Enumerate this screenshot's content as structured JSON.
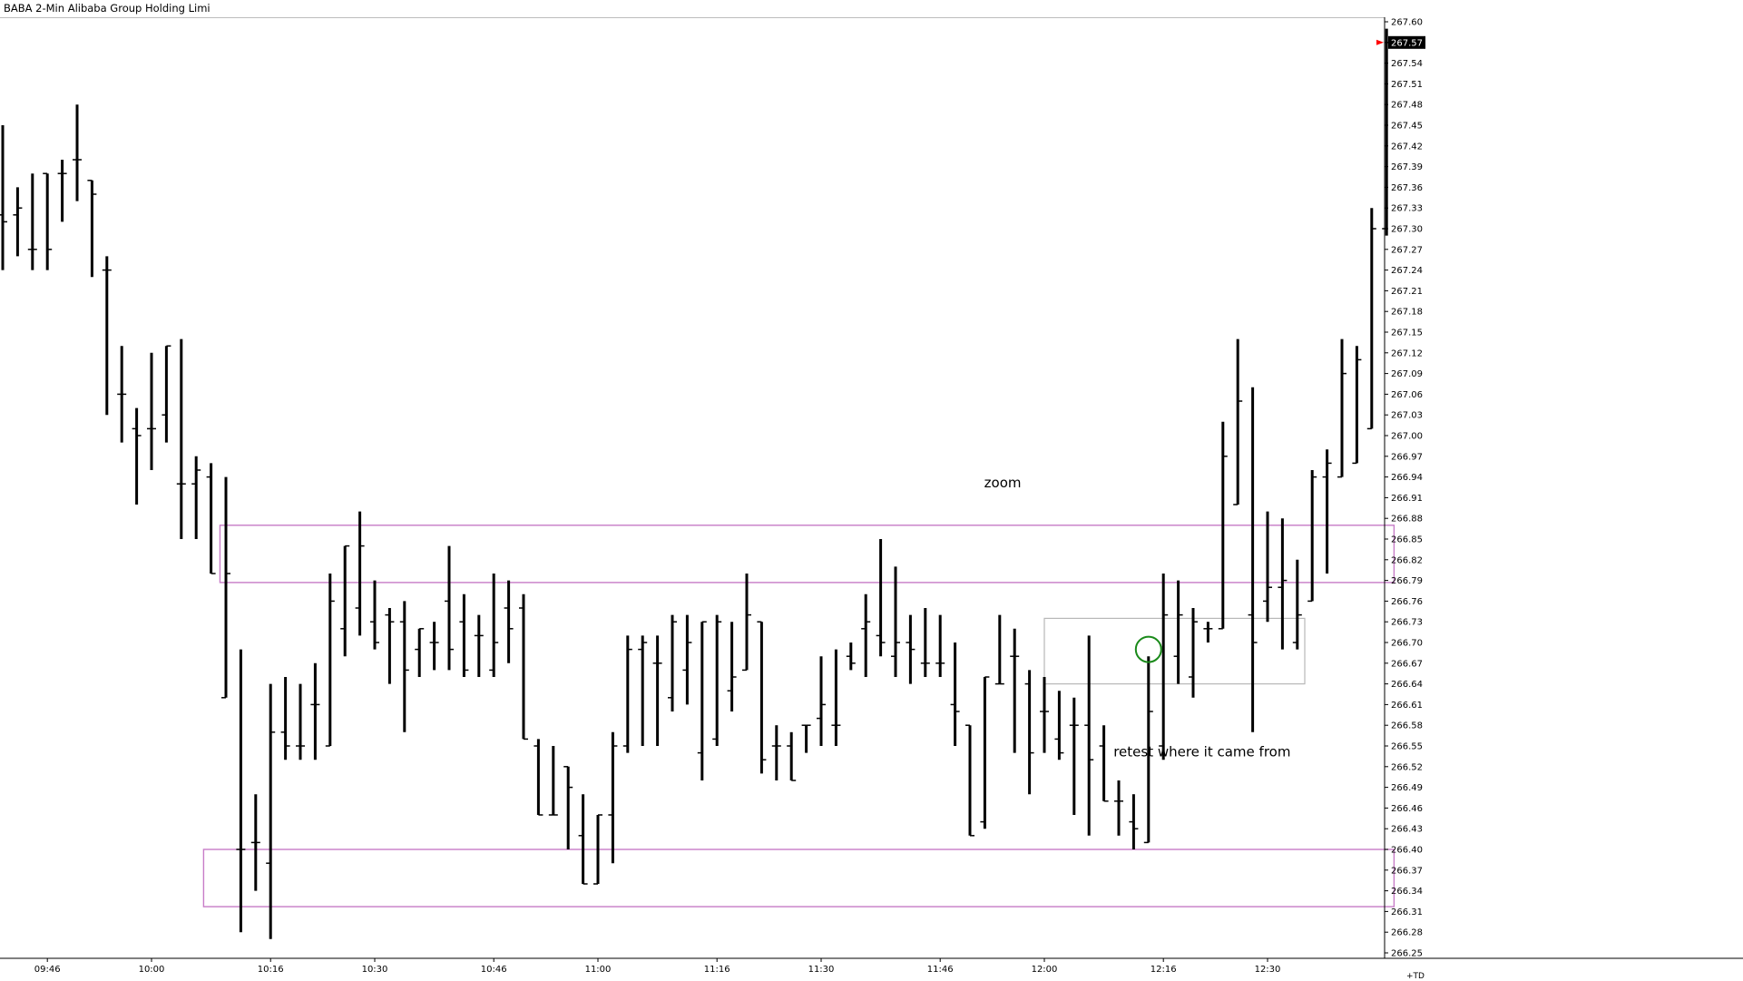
{
  "window": {
    "title": "BABA 2-Min Alibaba Group Holding Limi",
    "corner_label": "+TD"
  },
  "colors": {
    "bar": "#000000",
    "zone": "#c77cc7",
    "retest_box": "#b8b8b8",
    "circle": "#1a8a1a",
    "last_price_marker": "#ff0000",
    "last_price_bg": "#000000"
  },
  "chart_data": {
    "type": "ohlc",
    "symbol": "BABA",
    "interval": "2-Min",
    "title": "BABA 2-Min Alibaba Group Holding Limi",
    "ylim": [
      266.25,
      267.6
    ],
    "y_ticks": [
      267.6,
      267.57,
      267.54,
      267.51,
      267.48,
      267.45,
      267.42,
      267.39,
      267.36,
      267.33,
      267.3,
      267.27,
      267.24,
      267.21,
      267.18,
      267.15,
      267.12,
      267.09,
      267.06,
      267.03,
      267.0,
      266.97,
      266.94,
      266.91,
      266.88,
      266.85,
      266.82,
      266.79,
      266.76,
      266.73,
      266.7,
      266.67,
      266.64,
      266.61,
      266.58,
      266.55,
      266.52,
      266.49,
      266.46,
      266.43,
      266.4,
      266.37,
      266.34,
      266.31,
      266.28,
      266.25
    ],
    "x_ticks": [
      {
        "label": "09:46",
        "bar": 3
      },
      {
        "label": "10:00",
        "bar": 10
      },
      {
        "label": "10:16",
        "bar": 18
      },
      {
        "label": "10:30",
        "bar": 25
      },
      {
        "label": "10:46",
        "bar": 33
      },
      {
        "label": "11:00",
        "bar": 40
      },
      {
        "label": "11:16",
        "bar": 48
      },
      {
        "label": "11:30",
        "bar": 55
      },
      {
        "label": "11:46",
        "bar": 63
      },
      {
        "label": "12:00",
        "bar": 70
      },
      {
        "label": "12:16",
        "bar": 78
      },
      {
        "label": "12:30",
        "bar": 85
      }
    ],
    "last_price": 267.57,
    "bars": [
      {
        "o": 267.32,
        "h": 267.45,
        "l": 267.24,
        "c": 267.31
      },
      {
        "o": 267.32,
        "h": 267.36,
        "l": 267.26,
        "c": 267.33
      },
      {
        "o": 267.27,
        "h": 267.38,
        "l": 267.24,
        "c": 267.27
      },
      {
        "o": 267.38,
        "h": 267.38,
        "l": 267.24,
        "c": 267.27
      },
      {
        "o": 267.38,
        "h": 267.4,
        "l": 267.31,
        "c": 267.38
      },
      {
        "o": 267.4,
        "h": 267.48,
        "l": 267.34,
        "c": 267.4
      },
      {
        "o": 267.37,
        "h": 267.37,
        "l": 267.23,
        "c": 267.35
      },
      {
        "o": 267.24,
        "h": 267.26,
        "l": 267.03,
        "c": 267.24
      },
      {
        "o": 267.06,
        "h": 267.13,
        "l": 266.99,
        "c": 267.06
      },
      {
        "o": 267.01,
        "h": 267.04,
        "l": 266.9,
        "c": 267.0
      },
      {
        "o": 267.01,
        "h": 267.12,
        "l": 266.95,
        "c": 267.01
      },
      {
        "o": 267.03,
        "h": 267.13,
        "l": 266.99,
        "c": 267.13
      },
      {
        "o": 266.93,
        "h": 267.14,
        "l": 266.85,
        "c": 266.93
      },
      {
        "o": 266.93,
        "h": 266.97,
        "l": 266.85,
        "c": 266.95
      },
      {
        "o": 266.94,
        "h": 266.96,
        "l": 266.8,
        "c": 266.8
      },
      {
        "o": 266.62,
        "h": 266.94,
        "l": 266.62,
        "c": 266.8
      },
      {
        "o": 266.4,
        "h": 266.69,
        "l": 266.28,
        "c": 266.4
      },
      {
        "o": 266.41,
        "h": 266.48,
        "l": 266.34,
        "c": 266.41
      },
      {
        "o": 266.38,
        "h": 266.64,
        "l": 266.27,
        "c": 266.57
      },
      {
        "o": 266.57,
        "h": 266.65,
        "l": 266.53,
        "c": 266.55
      },
      {
        "o": 266.55,
        "h": 266.64,
        "l": 266.53,
        "c": 266.55
      },
      {
        "o": 266.61,
        "h": 266.67,
        "l": 266.53,
        "c": 266.61
      },
      {
        "o": 266.55,
        "h": 266.8,
        "l": 266.55,
        "c": 266.76
      },
      {
        "o": 266.72,
        "h": 266.84,
        "l": 266.68,
        "c": 266.84
      },
      {
        "o": 266.75,
        "h": 266.89,
        "l": 266.71,
        "c": 266.84
      },
      {
        "o": 266.73,
        "h": 266.79,
        "l": 266.69,
        "c": 266.7
      },
      {
        "o": 266.74,
        "h": 266.75,
        "l": 266.64,
        "c": 266.73
      },
      {
        "o": 266.73,
        "h": 266.76,
        "l": 266.57,
        "c": 266.66
      },
      {
        "o": 266.69,
        "h": 266.72,
        "l": 266.65,
        "c": 266.72
      },
      {
        "o": 266.7,
        "h": 266.73,
        "l": 266.66,
        "c": 266.7
      },
      {
        "o": 266.76,
        "h": 266.84,
        "l": 266.66,
        "c": 266.69
      },
      {
        "o": 266.73,
        "h": 266.77,
        "l": 266.65,
        "c": 266.66
      },
      {
        "o": 266.71,
        "h": 266.74,
        "l": 266.65,
        "c": 266.71
      },
      {
        "o": 266.66,
        "h": 266.8,
        "l": 266.65,
        "c": 266.7
      },
      {
        "o": 266.75,
        "h": 266.79,
        "l": 266.67,
        "c": 266.72
      },
      {
        "o": 266.75,
        "h": 266.77,
        "l": 266.56,
        "c": 266.56
      },
      {
        "o": 266.55,
        "h": 266.56,
        "l": 266.45,
        "c": 266.45
      },
      {
        "o": 266.45,
        "h": 266.55,
        "l": 266.45,
        "c": 266.45
      },
      {
        "o": 266.52,
        "h": 266.52,
        "l": 266.4,
        "c": 266.49
      },
      {
        "o": 266.42,
        "h": 266.48,
        "l": 266.35,
        "c": 266.35
      },
      {
        "o": 266.35,
        "h": 266.45,
        "l": 266.35,
        "c": 266.45
      },
      {
        "o": 266.45,
        "h": 266.57,
        "l": 266.38,
        "c": 266.55
      },
      {
        "o": 266.55,
        "h": 266.71,
        "l": 266.54,
        "c": 266.69
      },
      {
        "o": 266.69,
        "h": 266.71,
        "l": 266.55,
        "c": 266.7
      },
      {
        "o": 266.67,
        "h": 266.71,
        "l": 266.55,
        "c": 266.67
      },
      {
        "o": 266.62,
        "h": 266.74,
        "l": 266.6,
        "c": 266.73
      },
      {
        "o": 266.66,
        "h": 266.74,
        "l": 266.61,
        "c": 266.7
      },
      {
        "o": 266.54,
        "h": 266.73,
        "l": 266.5,
        "c": 266.73
      },
      {
        "o": 266.56,
        "h": 266.74,
        "l": 266.55,
        "c": 266.73
      },
      {
        "o": 266.63,
        "h": 266.73,
        "l": 266.6,
        "c": 266.65
      },
      {
        "o": 266.66,
        "h": 266.8,
        "l": 266.66,
        "c": 266.74
      },
      {
        "o": 266.73,
        "h": 266.73,
        "l": 266.51,
        "c": 266.53
      },
      {
        "o": 266.55,
        "h": 266.58,
        "l": 266.5,
        "c": 266.55
      },
      {
        "o": 266.55,
        "h": 266.57,
        "l": 266.5,
        "c": 266.5
      },
      {
        "o": 266.58,
        "h": 266.58,
        "l": 266.54,
        "c": 266.58
      },
      {
        "o": 266.59,
        "h": 266.68,
        "l": 266.55,
        "c": 266.61
      },
      {
        "o": 266.58,
        "h": 266.69,
        "l": 266.55,
        "c": 266.58
      },
      {
        "o": 266.68,
        "h": 266.7,
        "l": 266.66,
        "c": 266.67
      },
      {
        "o": 266.72,
        "h": 266.77,
        "l": 266.65,
        "c": 266.73
      },
      {
        "o": 266.71,
        "h": 266.85,
        "l": 266.68,
        "c": 266.7
      },
      {
        "o": 266.68,
        "h": 266.81,
        "l": 266.65,
        "c": 266.7
      },
      {
        "o": 266.7,
        "h": 266.74,
        "l": 266.64,
        "c": 266.69
      },
      {
        "o": 266.67,
        "h": 266.75,
        "l": 266.65,
        "c": 266.67
      },
      {
        "o": 266.67,
        "h": 266.74,
        "l": 266.65,
        "c": 266.67
      },
      {
        "o": 266.61,
        "h": 266.7,
        "l": 266.55,
        "c": 266.6
      },
      {
        "o": 266.58,
        "h": 266.58,
        "l": 266.42,
        "c": 266.42
      },
      {
        "o": 266.44,
        "h": 266.65,
        "l": 266.43,
        "c": 266.65
      },
      {
        "o": 266.64,
        "h": 266.74,
        "l": 266.64,
        "c": 266.64
      },
      {
        "o": 266.68,
        "h": 266.72,
        "l": 266.54,
        "c": 266.68
      },
      {
        "o": 266.64,
        "h": 266.66,
        "l": 266.48,
        "c": 266.54
      },
      {
        "o": 266.6,
        "h": 266.65,
        "l": 266.54,
        "c": 266.6
      },
      {
        "o": 266.56,
        "h": 266.63,
        "l": 266.53,
        "c": 266.54
      },
      {
        "o": 266.58,
        "h": 266.62,
        "l": 266.45,
        "c": 266.58
      },
      {
        "o": 266.58,
        "h": 266.71,
        "l": 266.42,
        "c": 266.53
      },
      {
        "o": 266.55,
        "h": 266.58,
        "l": 266.47,
        "c": 266.47
      },
      {
        "o": 266.47,
        "h": 266.5,
        "l": 266.42,
        "c": 266.47
      },
      {
        "o": 266.44,
        "h": 266.48,
        "l": 266.4,
        "c": 266.43
      },
      {
        "o": 266.41,
        "h": 266.68,
        "l": 266.41,
        "c": 266.6
      },
      {
        "o": 266.55,
        "h": 266.8,
        "l": 266.53,
        "c": 266.74
      },
      {
        "o": 266.68,
        "h": 266.79,
        "l": 266.64,
        "c": 266.74
      },
      {
        "o": 266.65,
        "h": 266.75,
        "l": 266.62,
        "c": 266.73
      },
      {
        "o": 266.72,
        "h": 266.73,
        "l": 266.7,
        "c": 266.72
      },
      {
        "o": 266.72,
        "h": 267.02,
        "l": 266.72,
        "c": 266.97
      },
      {
        "o": 266.9,
        "h": 267.14,
        "l": 266.9,
        "c": 267.05
      },
      {
        "o": 266.74,
        "h": 267.07,
        "l": 266.57,
        "c": 266.7
      },
      {
        "o": 266.76,
        "h": 266.89,
        "l": 266.73,
        "c": 266.78
      },
      {
        "o": 266.78,
        "h": 266.88,
        "l": 266.69,
        "c": 266.79
      },
      {
        "o": 266.7,
        "h": 266.82,
        "l": 266.69,
        "c": 266.74
      },
      {
        "o": 266.76,
        "h": 266.95,
        "l": 266.76,
        "c": 266.94
      },
      {
        "o": 266.94,
        "h": 266.98,
        "l": 266.8,
        "c": 266.96
      },
      {
        "o": 266.94,
        "h": 267.14,
        "l": 266.94,
        "c": 267.09
      },
      {
        "o": 266.96,
        "h": 267.13,
        "l": 266.96,
        "c": 267.11
      },
      {
        "o": 267.01,
        "h": 267.33,
        "l": 267.01,
        "c": 267.3
      },
      {
        "o": 267.3,
        "h": 267.59,
        "l": 267.29,
        "c": 267.57
      }
    ],
    "zones": [
      {
        "label": "upper-zone",
        "x0_bar": 14.6,
        "x1_bar": 93.5,
        "top": 266.87,
        "bottom": 266.787
      },
      {
        "label": "lower-zone",
        "x0_bar": 13.5,
        "x1_bar": 93.5,
        "top": 266.4,
        "bottom": 266.317
      }
    ],
    "retest_box": {
      "x0_bar": 70,
      "x1_bar": 87.5,
      "top": 266.735,
      "bottom": 266.64
    },
    "retest_circle": {
      "bar": 77,
      "price": 266.69
    },
    "annotations": [
      {
        "text": "zoom",
        "bar": 67.2,
        "price": 266.925
      },
      {
        "text": "retest where it came from",
        "bar": 80.6,
        "price": 266.535
      }
    ]
  }
}
